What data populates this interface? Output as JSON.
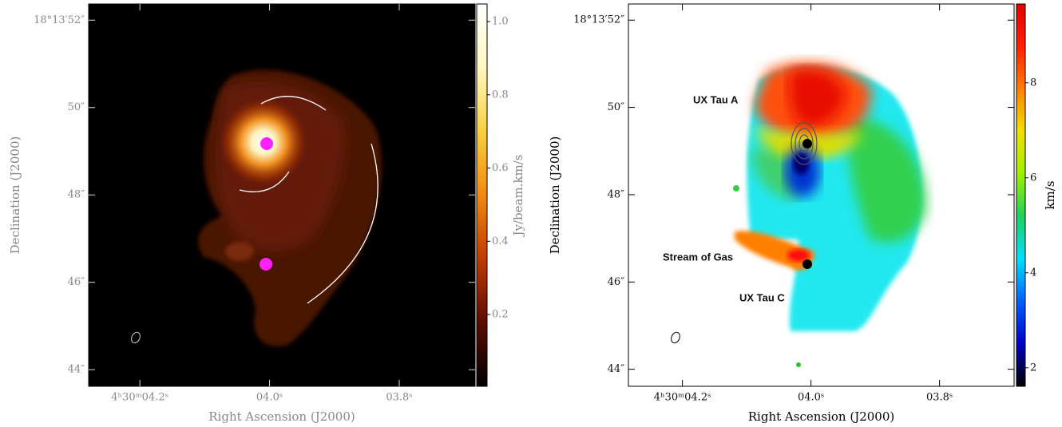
{
  "chart_data": [
    {
      "type": "image",
      "xlabel": "Right Ascension (J2000)",
      "ylabel": "Declination (J2000)",
      "xlim": [
        4.279,
        3.683
      ],
      "ylim": [
        43.62,
        52.37
      ],
      "xticks": [
        {
          "value": 4.2,
          "label": "4ʰ30ᵐ04.2ˢ"
        },
        {
          "value": 4.0,
          "label": "04.0ˢ"
        },
        {
          "value": 3.8,
          "label": "03.8ˢ"
        }
      ],
      "yticks": [
        {
          "value": 52,
          "label": "18°13′52″"
        },
        {
          "value": 50,
          "label": "50″"
        },
        {
          "value": 48,
          "label": "48″"
        },
        {
          "value": 46,
          "label": "46″"
        },
        {
          "value": 44,
          "label": "44″"
        }
      ],
      "colorbar": {
        "label": "Jy/beam.km/s",
        "lim": [
          0.004,
          1.048
        ],
        "ticks": [
          0.2,
          0.4,
          0.6,
          0.8,
          {
            "value": 1,
            "label": "1.0"
          }
        ],
        "colors": [
          "#000000",
          "#5a0c00",
          "#c03a00",
          "#f08a10",
          "#f8d040",
          "#fff8c0",
          "#ffffff"
        ]
      },
      "annotations": []
    },
    {
      "type": "image",
      "xlabel": "Right Ascension (J2000)",
      "ylabel": "Declination (J2000)",
      "xlim": [
        4.284,
        3.684
      ],
      "ylim": [
        43.61,
        52.37
      ],
      "xticks": [
        {
          "value": 4.2,
          "label": "4ʰ30ᵐ04.2ˢ"
        },
        {
          "value": 4.0,
          "label": "04.0ˢ"
        },
        {
          "value": 3.8,
          "label": "03.8ˢ"
        }
      ],
      "yticks": [
        {
          "value": 52,
          "label": "18°13′52″"
        },
        {
          "value": 50,
          "label": "50″"
        },
        {
          "value": 48,
          "label": "48″"
        },
        {
          "value": 46,
          "label": "46″"
        },
        {
          "value": 44,
          "label": "44″"
        }
      ],
      "colorbar": {
        "label": "km/s",
        "lim": [
          1.61,
          9.66
        ],
        "ticks": [
          2,
          4,
          6,
          8
        ],
        "colors": [
          "#000000",
          "#0000c0",
          "#0060ff",
          "#00e0ff",
          "#20d060",
          "#a0f000",
          "#f0e000",
          "#ff8000",
          "#ff2000",
          "#e00000"
        ]
      },
      "annotations": [
        "UX Tau A",
        "Stream of Gas",
        "UX Tau C"
      ]
    }
  ]
}
